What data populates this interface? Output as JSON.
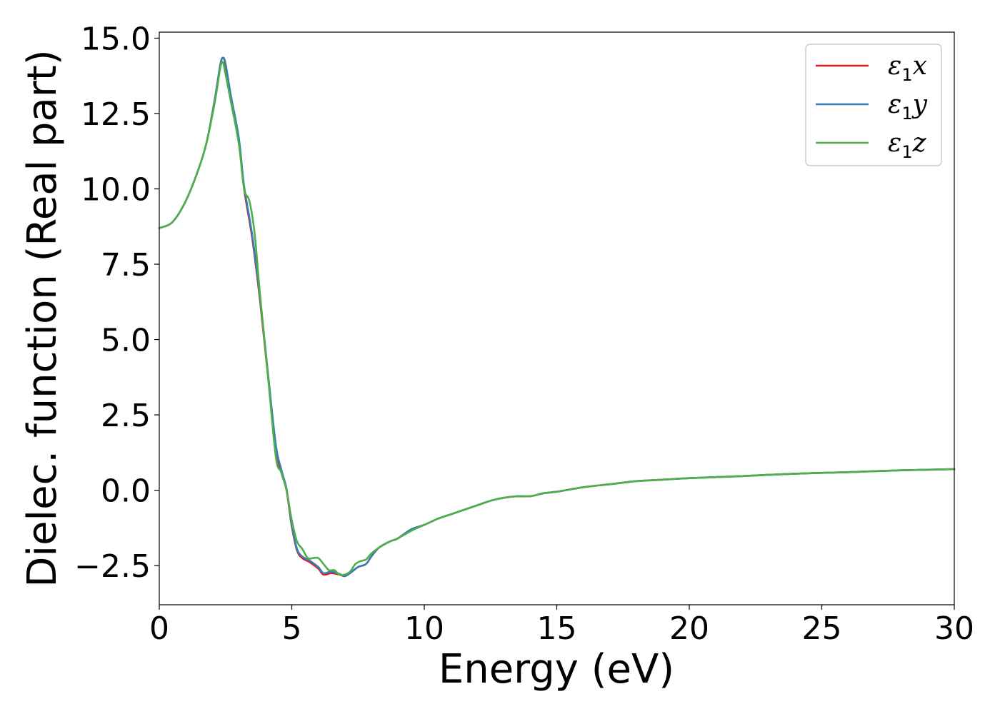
{
  "chart_data": {
    "type": "line",
    "title": "",
    "xlabel": "Energy (eV)",
    "ylabel": "Dielec. function (Real part)",
    "xlim": [
      0,
      30
    ],
    "ylim": [
      -3.8,
      15.2
    ],
    "xticks": [
      0,
      5,
      10,
      15,
      20,
      25,
      30
    ],
    "xtick_labels": [
      "0",
      "5",
      "10",
      "15",
      "20",
      "25",
      "30"
    ],
    "yticks": [
      -2.5,
      0.0,
      2.5,
      5.0,
      7.5,
      10.0,
      12.5,
      15.0
    ],
    "ytick_labels": [
      "−2.5",
      "0.0",
      "2.5",
      "5.0",
      "7.5",
      "10.0",
      "12.5",
      "15.0"
    ],
    "grid": false,
    "legend_position": "top-right",
    "series": [
      {
        "name": "ε1x",
        "legend_symbol": "ε",
        "legend_sub": "1",
        "legend_suffix": "x",
        "color": "#e41a1c",
        "x": [
          0,
          0.5,
          1.0,
          1.5,
          1.8,
          2.1,
          2.3,
          2.4,
          2.5,
          2.7,
          3.0,
          3.2,
          3.5,
          3.8,
          4.1,
          4.4,
          4.6,
          4.8,
          5.0,
          5.2,
          5.4,
          5.7,
          6.0,
          6.2,
          6.5,
          6.8,
          7.0,
          7.2,
          7.5,
          7.8,
          8.0,
          8.3,
          8.7,
          9.0,
          9.5,
          10.0,
          10.5,
          11.0,
          11.5,
          12.0,
          12.5,
          13.0,
          13.5,
          14.0,
          14.5,
          15.0,
          16.0,
          17.0,
          18.0,
          19.0,
          20.0,
          22.0,
          24.0,
          26.0,
          28.0,
          30.0
        ],
        "values": [
          8.7,
          8.9,
          9.6,
          10.7,
          11.6,
          13.0,
          14.1,
          14.35,
          14.1,
          13.0,
          11.6,
          10.0,
          8.4,
          6.3,
          3.8,
          1.4,
          0.6,
          0.0,
          -1.2,
          -2.0,
          -2.25,
          -2.4,
          -2.6,
          -2.8,
          -2.75,
          -2.8,
          -2.85,
          -2.75,
          -2.55,
          -2.45,
          -2.2,
          -1.9,
          -1.7,
          -1.6,
          -1.3,
          -1.15,
          -0.95,
          -0.8,
          -0.65,
          -0.5,
          -0.35,
          -0.25,
          -0.2,
          -0.2,
          -0.1,
          -0.05,
          0.1,
          0.2,
          0.3,
          0.35,
          0.4,
          0.47,
          0.55,
          0.6,
          0.66,
          0.7
        ]
      },
      {
        "name": "ε1y",
        "legend_symbol": "ε",
        "legend_sub": "1",
        "legend_suffix": "y",
        "color": "#377eb8",
        "x": [
          0,
          0.5,
          1.0,
          1.5,
          1.8,
          2.1,
          2.3,
          2.4,
          2.5,
          2.7,
          3.0,
          3.2,
          3.5,
          3.8,
          4.1,
          4.4,
          4.6,
          4.8,
          5.0,
          5.2,
          5.4,
          5.7,
          6.0,
          6.2,
          6.5,
          6.8,
          7.0,
          7.2,
          7.5,
          7.8,
          8.0,
          8.3,
          8.7,
          9.0,
          9.5,
          10.0,
          10.5,
          11.0,
          11.5,
          12.0,
          12.5,
          13.0,
          13.5,
          14.0,
          14.5,
          15.0,
          16.0,
          17.0,
          18.0,
          19.0,
          20.0,
          22.0,
          24.0,
          26.0,
          28.0,
          30.0
        ],
        "values": [
          8.7,
          8.9,
          9.6,
          10.7,
          11.6,
          13.0,
          14.1,
          14.35,
          14.15,
          13.1,
          11.7,
          10.1,
          8.5,
          6.4,
          3.9,
          1.5,
          0.7,
          0.05,
          -1.15,
          -1.95,
          -2.2,
          -2.35,
          -2.55,
          -2.75,
          -2.7,
          -2.78,
          -2.85,
          -2.75,
          -2.55,
          -2.45,
          -2.2,
          -1.9,
          -1.7,
          -1.6,
          -1.3,
          -1.15,
          -0.95,
          -0.8,
          -0.65,
          -0.5,
          -0.35,
          -0.25,
          -0.2,
          -0.2,
          -0.1,
          -0.05,
          0.1,
          0.2,
          0.3,
          0.35,
          0.4,
          0.47,
          0.55,
          0.6,
          0.66,
          0.7
        ]
      },
      {
        "name": "ε1z",
        "legend_symbol": "ε",
        "legend_sub": "1",
        "legend_suffix": "z",
        "color": "#4daf4a",
        "x": [
          0,
          0.5,
          1.0,
          1.5,
          1.8,
          2.1,
          2.3,
          2.4,
          2.5,
          2.7,
          3.0,
          3.2,
          3.4,
          3.6,
          3.8,
          4.1,
          4.4,
          4.6,
          4.8,
          5.0,
          5.2,
          5.4,
          5.6,
          5.8,
          6.0,
          6.2,
          6.4,
          6.6,
          6.8,
          7.0,
          7.2,
          7.4,
          7.6,
          7.8,
          8.0,
          8.3,
          8.7,
          9.0,
          9.5,
          10.0,
          10.5,
          11.0,
          11.5,
          12.0,
          12.5,
          13.0,
          13.5,
          14.0,
          14.5,
          15.0,
          16.0,
          17.0,
          18.0,
          19.0,
          20.0,
          22.0,
          24.0,
          26.0,
          28.0,
          30.0
        ],
        "values": [
          8.7,
          8.9,
          9.6,
          10.7,
          11.6,
          12.9,
          14.0,
          14.2,
          13.8,
          12.9,
          11.5,
          10.0,
          9.6,
          8.5,
          6.5,
          3.8,
          1.1,
          0.6,
          0.0,
          -1.0,
          -1.7,
          -1.95,
          -2.25,
          -2.25,
          -2.25,
          -2.45,
          -2.65,
          -2.65,
          -2.8,
          -2.8,
          -2.7,
          -2.45,
          -2.35,
          -2.3,
          -2.1,
          -1.9,
          -1.7,
          -1.6,
          -1.35,
          -1.15,
          -0.95,
          -0.8,
          -0.65,
          -0.5,
          -0.35,
          -0.25,
          -0.2,
          -0.2,
          -0.1,
          -0.05,
          0.1,
          0.2,
          0.3,
          0.35,
          0.4,
          0.47,
          0.55,
          0.6,
          0.66,
          0.7
        ]
      }
    ]
  }
}
